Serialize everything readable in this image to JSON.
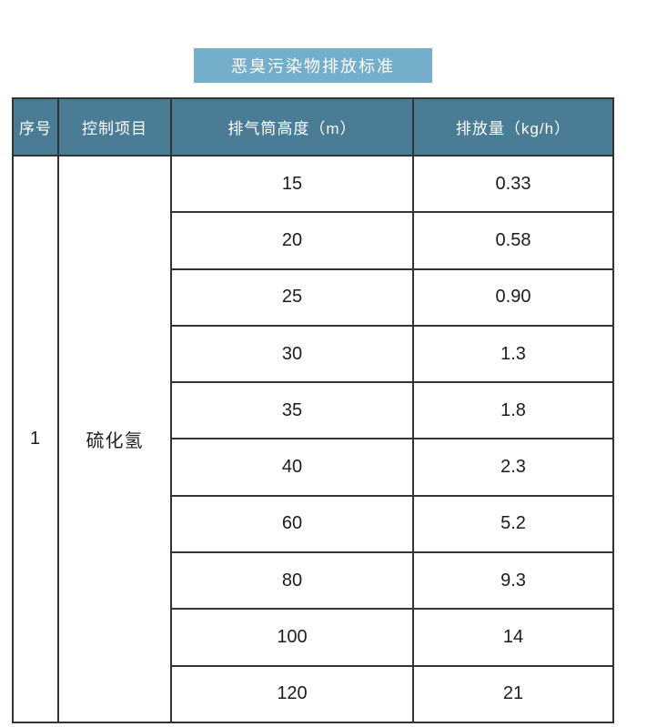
{
  "colors": {
    "page_bg": "#ffffff",
    "banner_bg": "#74aecb",
    "banner_text": "#ffffff",
    "header_bg": "#4a7d95",
    "header_text": "#ffffff",
    "border": "#333333",
    "cell_text": "#1c1c1c"
  },
  "chart_data": {
    "type": "table",
    "title": "恶臭污染物排放标准",
    "columns": [
      "序号",
      "控制项目",
      "排气筒高度（m）",
      "排放量（kg/h）"
    ],
    "serial_number": "1",
    "control_item": "硫化氢",
    "stack_heights_m": [
      "15",
      "20",
      "25",
      "30",
      "35",
      "40",
      "60",
      "80",
      "100",
      "120"
    ],
    "emission_rates_kg_h": [
      "0.33",
      "0.58",
      "0.90",
      "1.3",
      "1.8",
      "2.3",
      "5.2",
      "9.3",
      "14",
      "21"
    ]
  }
}
